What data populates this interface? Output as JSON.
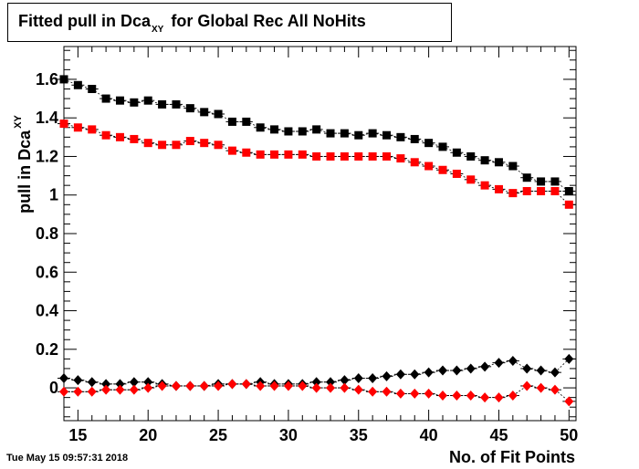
{
  "title": {
    "main": "Fitted pull in Dca",
    "sub": "XY",
    "rest": "for Global Rec All NoHits"
  },
  "timestamp": "Tue May 15 09:57:31 2018",
  "chart_data": {
    "type": "scatter",
    "title": "Fitted pull in Dca_XY for Global Rec All NoHits",
    "xlabel": "No. of Fit Points",
    "ylabel": {
      "main": "pull in Dca",
      "sub": "XY"
    },
    "xlim": [
      14,
      50.5
    ],
    "ylim": [
      -0.17,
      1.77
    ],
    "x_ticks": [
      15,
      20,
      25,
      30,
      35,
      40,
      45,
      50
    ],
    "y_ticks": [
      0,
      0.2,
      0.4,
      0.6,
      0.8,
      1,
      1.2,
      1.4,
      1.6
    ],
    "y_tick_labels": [
      "0",
      "0.2",
      "0.4",
      "0.6",
      "0.8",
      "1",
      "1.2",
      "1.4",
      "1.6"
    ],
    "x": [
      14,
      15,
      16,
      17,
      18,
      19,
      20,
      21,
      22,
      23,
      24,
      25,
      26,
      27,
      28,
      29,
      30,
      31,
      32,
      33,
      34,
      35,
      36,
      37,
      38,
      39,
      40,
      41,
      42,
      43,
      44,
      45,
      46,
      47,
      48,
      49,
      50
    ],
    "series": [
      {
        "marker": "square",
        "color": "#000000",
        "values": [
          1.6,
          1.57,
          1.55,
          1.5,
          1.49,
          1.48,
          1.49,
          1.47,
          1.47,
          1.45,
          1.43,
          1.42,
          1.38,
          1.38,
          1.35,
          1.34,
          1.33,
          1.33,
          1.34,
          1.32,
          1.32,
          1.31,
          1.32,
          1.31,
          1.3,
          1.29,
          1.27,
          1.25,
          1.22,
          1.2,
          1.18,
          1.17,
          1.15,
          1.09,
          1.07,
          1.07,
          1.02
        ]
      },
      {
        "marker": "square",
        "color": "#ff0000",
        "values": [
          1.37,
          1.35,
          1.34,
          1.31,
          1.3,
          1.29,
          1.27,
          1.26,
          1.26,
          1.28,
          1.27,
          1.26,
          1.23,
          1.22,
          1.21,
          1.21,
          1.21,
          1.21,
          1.2,
          1.2,
          1.2,
          1.2,
          1.2,
          1.2,
          1.19,
          1.17,
          1.15,
          1.13,
          1.11,
          1.08,
          1.05,
          1.03,
          1.01,
          1.02,
          1.02,
          1.02,
          0.95
        ]
      },
      {
        "marker": "diamond",
        "color": "#000000",
        "values": [
          0.05,
          0.04,
          0.03,
          0.02,
          0.02,
          0.03,
          0.03,
          0.02,
          0.01,
          0.01,
          0.01,
          0.02,
          0.02,
          0.02,
          0.03,
          0.02,
          0.02,
          0.02,
          0.03,
          0.03,
          0.04,
          0.05,
          0.05,
          0.06,
          0.07,
          0.07,
          0.08,
          0.09,
          0.09,
          0.1,
          0.11,
          0.13,
          0.14,
          0.1,
          0.09,
          0.08,
          0.15
        ]
      },
      {
        "marker": "diamond",
        "color": "#ff0000",
        "values": [
          -0.02,
          -0.02,
          -0.02,
          -0.01,
          -0.01,
          -0.01,
          0.0,
          0.01,
          0.01,
          0.01,
          0.01,
          0.01,
          0.02,
          0.02,
          0.01,
          0.01,
          0.01,
          0.01,
          0.0,
          0.0,
          0.0,
          -0.01,
          -0.02,
          -0.02,
          -0.03,
          -0.03,
          -0.03,
          -0.04,
          -0.04,
          -0.04,
          -0.05,
          -0.05,
          -0.04,
          0.01,
          0.0,
          -0.01,
          -0.07
        ]
      }
    ]
  }
}
